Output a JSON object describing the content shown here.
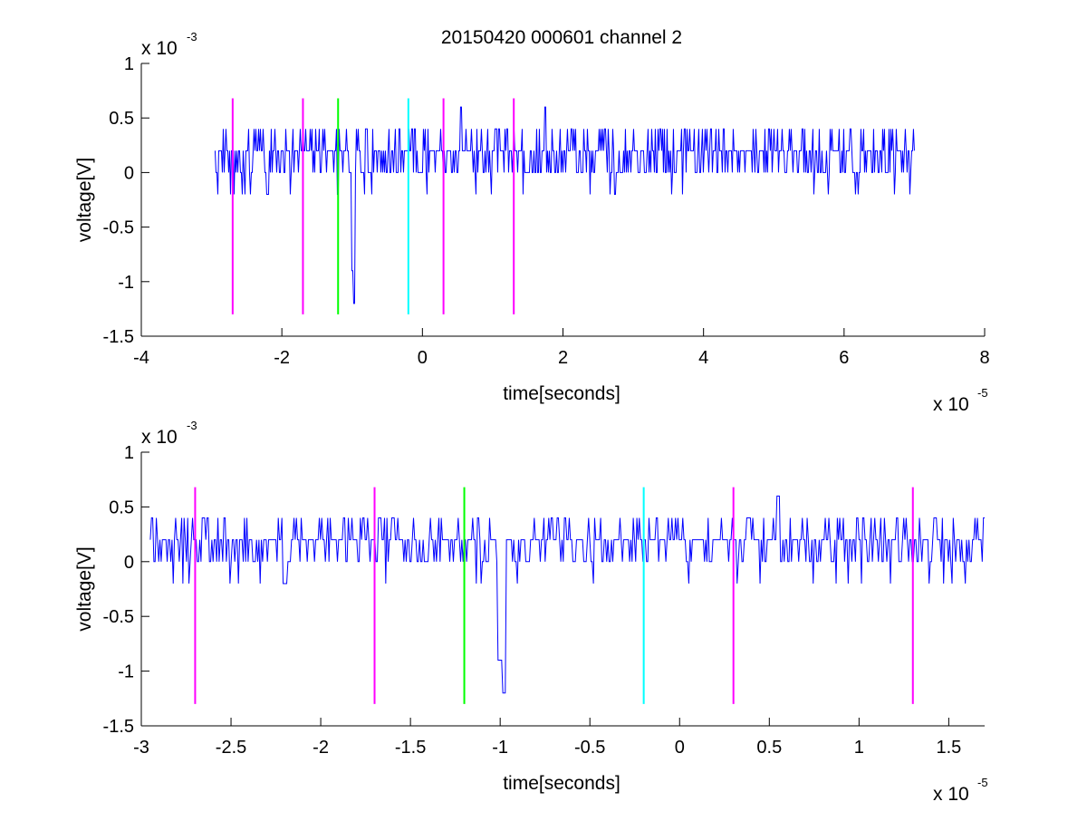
{
  "figure": {
    "title": "20150420 000601 channel 2"
  },
  "chart_data": [
    {
      "type": "line",
      "title": "20150420 000601 channel 2",
      "xlabel": "time[seconds]",
      "ylabel": "voltage[V]",
      "xlim": [
        -4e-05,
        8e-05
      ],
      "ylim": [
        -0.0015,
        0.001
      ],
      "x_ticks": [
        -4e-05,
        -2e-05,
        0,
        2e-05,
        4e-05,
        6e-05,
        8e-05
      ],
      "x_tick_labels": [
        "-4",
        "-2",
        "0",
        "2",
        "4",
        "6",
        "8"
      ],
      "y_ticks": [
        -0.0015,
        -0.001,
        -0.0005,
        0,
        0.0005,
        0.001
      ],
      "y_tick_labels": [
        "-1.5",
        "-1",
        "-0.5",
        "0",
        "0.5",
        "1"
      ],
      "x_multiplier": {
        "base": "x 10",
        "exponent": "-5"
      },
      "y_multiplier": {
        "base": "x 10",
        "exponent": "-3"
      },
      "grid": false,
      "series": [
        {
          "color": "#0000ff",
          "signal": {
            "x_start": -2.95e-05,
            "x_end": 7e-05,
            "baseline": 0.0002,
            "level_step": 0.0002,
            "levels": [
              0,
              0.0002,
              0.0004,
              -0.0002
            ],
            "level_weights": [
              0.28,
              0.5,
              0.18,
              0.04
            ],
            "spikes": [
              {
                "x": -9.8e-06,
                "y": -0.0012
              },
              {
                "x": -1e-05,
                "y": -0.0009
              },
              {
                "x": -1.2e-05,
                "y": -0.0002
              },
              {
                "x": 5.5e-06,
                "y": 0.0006
              },
              {
                "x": 1.75e-05,
                "y": 0.0006
              },
              {
                "x": -2.2e-05,
                "y": -0.0002
              }
            ]
          }
        }
      ],
      "markers": [
        {
          "x": -2.7e-05,
          "y_bottom": -0.0013,
          "y_top": 0.00068,
          "color": "#ff00ff"
        },
        {
          "x": -1.7e-05,
          "y_bottom": -0.0013,
          "y_top": 0.00068,
          "color": "#ff00ff"
        },
        {
          "x": -1.2e-05,
          "y_bottom": -0.0013,
          "y_top": 0.00068,
          "color": "#00ff00"
        },
        {
          "x": -2e-06,
          "y_bottom": -0.0013,
          "y_top": 0.00068,
          "color": "#00ffff"
        },
        {
          "x": 3e-06,
          "y_bottom": -0.0013,
          "y_top": 0.00068,
          "color": "#ff00ff"
        },
        {
          "x": 1.3e-05,
          "y_bottom": -0.0013,
          "y_top": 0.00068,
          "color": "#ff00ff"
        }
      ]
    },
    {
      "type": "line",
      "title": "",
      "xlabel": "time[seconds]",
      "ylabel": "voltage[V]",
      "xlim": [
        -3e-05,
        1.7e-05
      ],
      "ylim": [
        -0.0015,
        0.001
      ],
      "x_ticks": [
        -3e-05,
        -2.5e-05,
        -2e-05,
        -1.5e-05,
        -1e-05,
        -5e-06,
        0,
        5e-06,
        1e-05,
        1.5e-05
      ],
      "x_tick_labels": [
        "-3",
        "-2.5",
        "-2",
        "-1.5",
        "-1",
        "-0.5",
        "0",
        "0.5",
        "1",
        "1.5"
      ],
      "y_ticks": [
        -0.0015,
        -0.001,
        -0.0005,
        0,
        0.0005,
        0.001
      ],
      "y_tick_labels": [
        "-1.5",
        "-1",
        "-0.5",
        "0",
        "0.5",
        "1"
      ],
      "x_multiplier": {
        "base": "x 10",
        "exponent": "-5"
      },
      "y_multiplier": {
        "base": "x 10",
        "exponent": "-3"
      },
      "grid": false,
      "series": [
        {
          "color": "#0000ff",
          "signal": {
            "x_start": -2.95e-05,
            "x_end": 1.7e-05,
            "baseline": 0.0002,
            "level_step": 0.0002,
            "levels": [
              0,
              0.0002,
              0.0004,
              -0.0002
            ],
            "level_weights": [
              0.28,
              0.5,
              0.18,
              0.04
            ],
            "spikes": [
              {
                "x": -9.8e-06,
                "y": -0.0012
              },
              {
                "x": -1e-05,
                "y": -0.0009
              },
              {
                "x": -2.2e-05,
                "y": -0.0002
              },
              {
                "x": 5.5e-06,
                "y": 0.0006
              }
            ]
          }
        }
      ],
      "markers": [
        {
          "x": -2.7e-05,
          "y_bottom": -0.0013,
          "y_top": 0.00068,
          "color": "#ff00ff"
        },
        {
          "x": -1.7e-05,
          "y_bottom": -0.0013,
          "y_top": 0.00068,
          "color": "#ff00ff"
        },
        {
          "x": -1.2e-05,
          "y_bottom": -0.0013,
          "y_top": 0.00068,
          "color": "#00ff00"
        },
        {
          "x": -2e-06,
          "y_bottom": -0.0013,
          "y_top": 0.00068,
          "color": "#00ffff"
        },
        {
          "x": 3e-06,
          "y_bottom": -0.0013,
          "y_top": 0.00068,
          "color": "#ff00ff"
        },
        {
          "x": 1.3e-05,
          "y_bottom": -0.0013,
          "y_top": 0.00068,
          "color": "#ff00ff"
        }
      ]
    }
  ]
}
